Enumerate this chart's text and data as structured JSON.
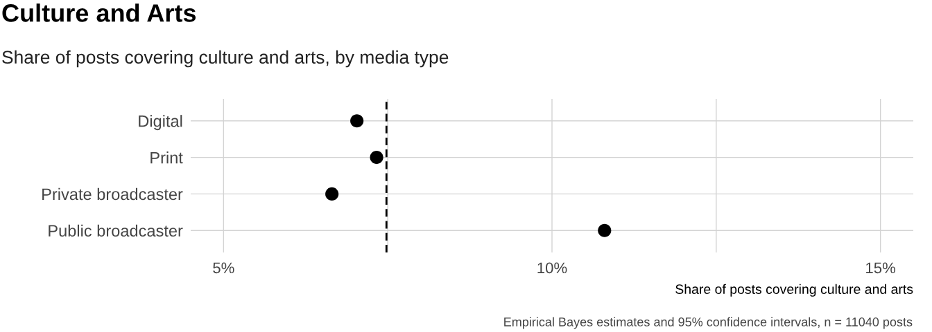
{
  "chart_data": {
    "type": "scatter",
    "title": "Culture and Arts",
    "subtitle": "Share of posts covering culture and arts, by media type",
    "xlabel": "Share of posts covering culture and arts",
    "annotations": [
      "Empirical Bayes estimates and 95% confidence intervals, n = 11040 posts"
    ],
    "orientation": "horizontal",
    "categories": [
      "Digital",
      "Print",
      "Private broadcaster",
      "Public broadcaster"
    ],
    "values": [
      7.03,
      7.33,
      6.65,
      10.8
    ],
    "color": "#000000",
    "marker": "circle",
    "xlim": [
      4.5,
      15.5
    ],
    "xticks": [
      {
        "value": 5,
        "label": "5%"
      },
      {
        "value": 7.5,
        "label": null
      },
      {
        "value": 10,
        "label": "10%"
      },
      {
        "value": 12.5,
        "label": null
      },
      {
        "value": 15,
        "label": "15%"
      }
    ],
    "ref_lines": [
      {
        "axis": "x",
        "value": 7.48,
        "color": "#000000",
        "line_style": "dashed"
      }
    ],
    "grid": true
  }
}
